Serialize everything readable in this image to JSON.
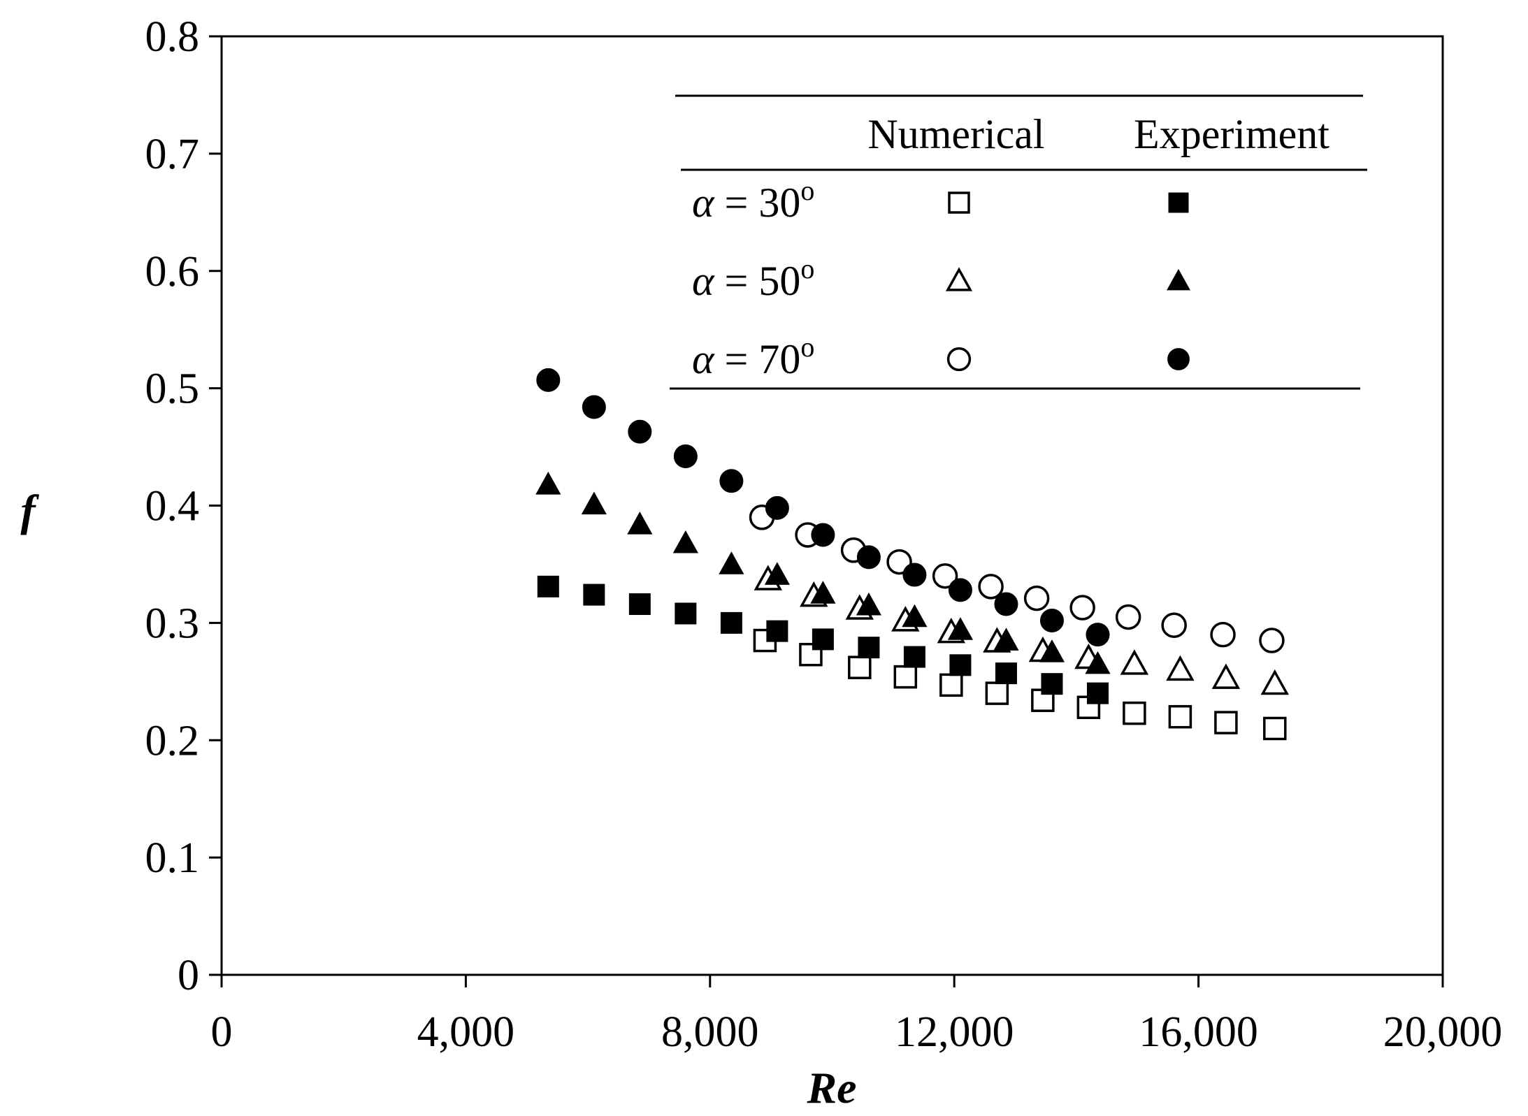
{
  "chart_data": {
    "type": "scatter",
    "title": "",
    "xlabel": "Re",
    "ylabel": "f",
    "xlim": [
      0,
      20000
    ],
    "ylim": [
      0,
      0.8
    ],
    "x_ticks": [
      0,
      4000,
      8000,
      12000,
      16000,
      20000
    ],
    "x_tick_labels": [
      "0",
      "4,000",
      "8,000",
      "12,000",
      "16,000",
      "20,000"
    ],
    "y_ticks": [
      0,
      0.1,
      0.2,
      0.3,
      0.4,
      0.5,
      0.6,
      0.7,
      0.8
    ],
    "y_tick_labels": [
      "0",
      "0.1",
      "0.2",
      "0.3",
      "0.4",
      "0.5",
      "0.6",
      "0.7",
      "0.8"
    ],
    "grid": false,
    "legend": {
      "placement": "top-right",
      "header": [
        "Numerical",
        "Experiment"
      ],
      "rows": [
        {
          "prefix": "α",
          "text": " = 30",
          "sup": "o",
          "shape": "square"
        },
        {
          "prefix": "α",
          "text": " = 50",
          "sup": "o",
          "shape": "triangle"
        },
        {
          "prefix": "α",
          "text": " = 70",
          "sup": "o",
          "shape": "circle"
        }
      ]
    },
    "series": [
      {
        "name": "α = 30° Numerical",
        "marker": "square",
        "filled": false,
        "x": [
          8900,
          9650,
          10450,
          11200,
          11950,
          12700,
          13450,
          14200,
          14950,
          15700,
          16450,
          17250
        ],
        "y": [
          0.285,
          0.273,
          0.262,
          0.254,
          0.247,
          0.24,
          0.234,
          0.228,
          0.223,
          0.22,
          0.215,
          0.21
        ]
      },
      {
        "name": "α = 30° Experiment",
        "marker": "square",
        "filled": true,
        "x": [
          5350,
          6100,
          6850,
          7600,
          8350,
          9100,
          9850,
          10600,
          11350,
          12100,
          12850,
          13600,
          14350
        ],
        "y": [
          0.331,
          0.324,
          0.316,
          0.308,
          0.3,
          0.293,
          0.286,
          0.279,
          0.271,
          0.264,
          0.257,
          0.248,
          0.24
        ]
      },
      {
        "name": "α = 50° Numerical",
        "marker": "triangle",
        "filled": false,
        "x": [
          8950,
          9700,
          10450,
          11200,
          11950,
          12700,
          13450,
          14200,
          14950,
          15700,
          16450,
          17250
        ],
        "y": [
          0.337,
          0.323,
          0.312,
          0.302,
          0.292,
          0.284,
          0.276,
          0.27,
          0.265,
          0.26,
          0.253,
          0.248
        ]
      },
      {
        "name": "α = 50° Experiment",
        "marker": "triangle",
        "filled": true,
        "x": [
          5350,
          6100,
          6850,
          7600,
          8350,
          9100,
          9850,
          10600,
          11350,
          12100,
          12850,
          13600,
          14350
        ],
        "y": [
          0.418,
          0.401,
          0.384,
          0.368,
          0.35,
          0.341,
          0.325,
          0.315,
          0.305,
          0.294,
          0.285,
          0.275,
          0.265
        ]
      },
      {
        "name": "α = 70° Numerical",
        "marker": "circle",
        "filled": false,
        "x": [
          8850,
          9600,
          10350,
          11100,
          11850,
          12600,
          13350,
          14100,
          14850,
          15600,
          16400,
          17200
        ],
        "y": [
          0.39,
          0.375,
          0.362,
          0.352,
          0.34,
          0.331,
          0.321,
          0.313,
          0.305,
          0.298,
          0.29,
          0.285
        ]
      },
      {
        "name": "α = 70° Experiment",
        "marker": "circle",
        "filled": true,
        "x": [
          5350,
          6100,
          6850,
          7600,
          8350,
          9100,
          9850,
          10600,
          11350,
          12100,
          12850,
          13600,
          14350
        ],
        "y": [
          0.507,
          0.484,
          0.463,
          0.442,
          0.421,
          0.398,
          0.375,
          0.356,
          0.341,
          0.328,
          0.316,
          0.302,
          0.29
        ]
      }
    ]
  }
}
